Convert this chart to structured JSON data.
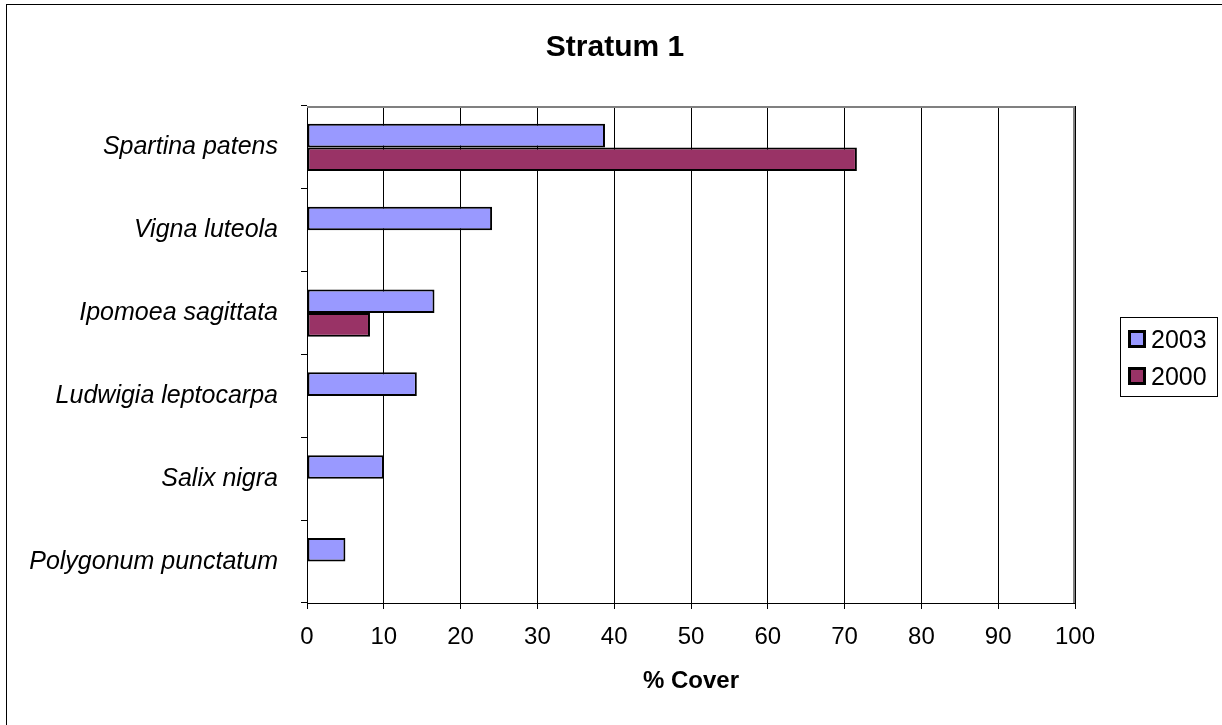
{
  "chart_data": {
    "type": "bar",
    "orientation": "horizontal",
    "title": "Stratum 1",
    "xlabel": "% Cover",
    "categories": [
      "Spartina patens",
      "Vigna luteola",
      "Ipomoea sagittata",
      "Ludwigia leptocarpa",
      "Salix nigra",
      "Polygonum punctatum"
    ],
    "series": [
      {
        "name": "2003",
        "color": "#9999ff",
        "values": [
          38.8,
          24.1,
          16.6,
          14.3,
          10.0,
          5.0
        ]
      },
      {
        "name": "2000",
        "color": "#993366",
        "values": [
          71.6,
          null,
          8.2,
          null,
          null,
          null
        ]
      }
    ],
    "xlim": [
      0,
      100
    ],
    "xticks": [
      0,
      10,
      20,
      30,
      40,
      50,
      60,
      70,
      80,
      90,
      100
    ],
    "grid": "x",
    "legend": "right"
  }
}
